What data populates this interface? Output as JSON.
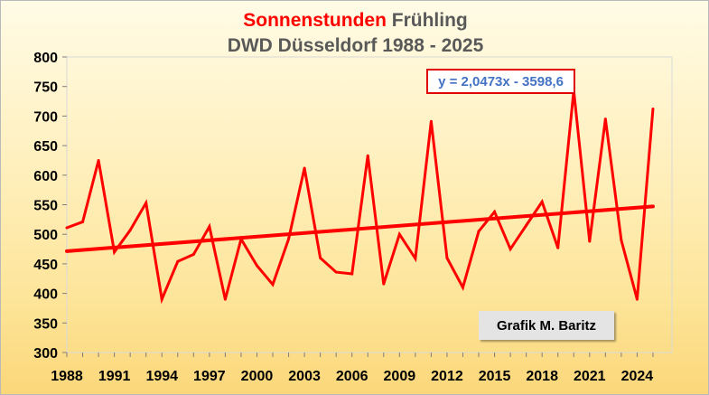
{
  "title": {
    "part1": "Sonnenstunden",
    "part2": " Frühling",
    "line2": "DWD Düsseldorf 1988 - 2025"
  },
  "trendline_label": "y = 2,0473x - 3598,6",
  "credit": "Grafik M. Baritz",
  "colors": {
    "series": "#ff0000",
    "title_accent": "#ff0000",
    "title_text": "#595959",
    "equation_text": "#4472c4"
  },
  "chart_data": {
    "type": "line",
    "title": "Sonnenstunden Frühling DWD Düsseldorf 1988 - 2025",
    "xlabel": "",
    "ylabel": "",
    "x": [
      1988,
      1989,
      1990,
      1991,
      1992,
      1993,
      1994,
      1995,
      1996,
      1997,
      1998,
      1999,
      2000,
      2001,
      2002,
      2003,
      2004,
      2005,
      2006,
      2007,
      2008,
      2009,
      2010,
      2011,
      2012,
      2013,
      2014,
      2015,
      2016,
      2017,
      2018,
      2019,
      2020,
      2021,
      2022,
      2023,
      2024,
      2025
    ],
    "series": [
      {
        "values": [
          511,
          521,
          625,
          470,
          507,
          553,
          390,
          454,
          466,
          513,
          390,
          492,
          447,
          415,
          492,
          612,
          460,
          436,
          433,
          633,
          416,
          500,
          459,
          691,
          460,
          410,
          505,
          538,
          475,
          515,
          555,
          477,
          743,
          488,
          695,
          490,
          390,
          712
        ]
      }
    ],
    "trendline": {
      "slope": 2.0473,
      "intercept": -3598.6,
      "label": "y = 2,0473x - 3598,6"
    },
    "xticks": [
      "1988",
      "1991",
      "1994",
      "1997",
      "2000",
      "2003",
      "2006",
      "2009",
      "2012",
      "2015",
      "2018",
      "2021",
      "2024"
    ],
    "yticks": [
      "300",
      "350",
      "400",
      "450",
      "500",
      "550",
      "600",
      "650",
      "700",
      "750",
      "800"
    ],
    "xlim": [
      1988,
      2026.2
    ],
    "ylim": [
      300,
      800
    ],
    "grid": false,
    "legend": "none"
  }
}
